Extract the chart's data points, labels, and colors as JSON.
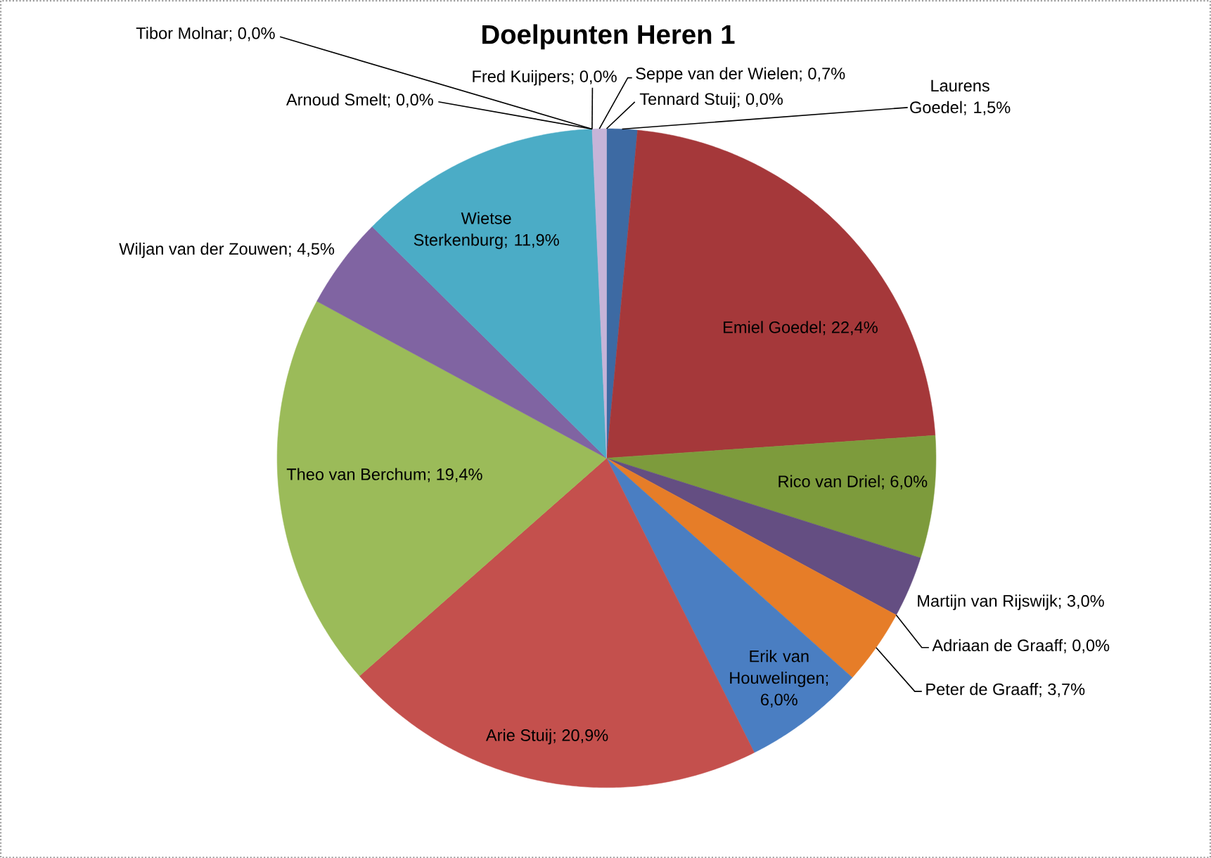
{
  "chart_data": {
    "type": "pie",
    "title": "Doelpunten Heren 1",
    "categories": [
      null,
      null,
      null,
      null,
      null,
      null,
      null,
      null,
      null,
      null,
      null,
      null,
      null,
      null,
      null,
      null
    ],
    "values": [
      1.5,
      22.4,
      6.0,
      3.0,
      0,
      3.7,
      6.0,
      20.9,
      19.4,
      4.5,
      11.9,
      0,
      0,
      0,
      0.7,
      0
    ],
    "value_labels": [
      "Laurens Goedel; 1,5%",
      "Emiel Goedel; 22,4%",
      "Rico van Driel; 6,0%",
      "Martijn van Rijswijk; 3,0%",
      "Adriaan de Graaff; 0,0%",
      "Peter de Graaff; 3,7%",
      "Erik van Houwelingen; 6,0%",
      "Arie Stuij; 20,9%",
      "Theo van Berchum; 19,4%",
      "Wiljan van der Zouwen; 4,5%",
      "Wietse Sterkenburg; 11,9%",
      "Arnoud Smelt; 0,0%",
      "Tibor Molnar; 0,0%",
      "Fred Kuijpers; 0,0%",
      "Seppe van der Wielen; 0,7%",
      "Tennard Stuij; 0,0%"
    ],
    "colors": [
      "#3d6aa3",
      "#a5383a",
      "#7d9b3c",
      "#644e82",
      null,
      "#e67d28",
      "#4a7ec2",
      "#c4504d",
      "#9bbb59",
      "#8064a2",
      "#4bacc6",
      null,
      null,
      null,
      "#c6b4d8",
      null
    ]
  }
}
